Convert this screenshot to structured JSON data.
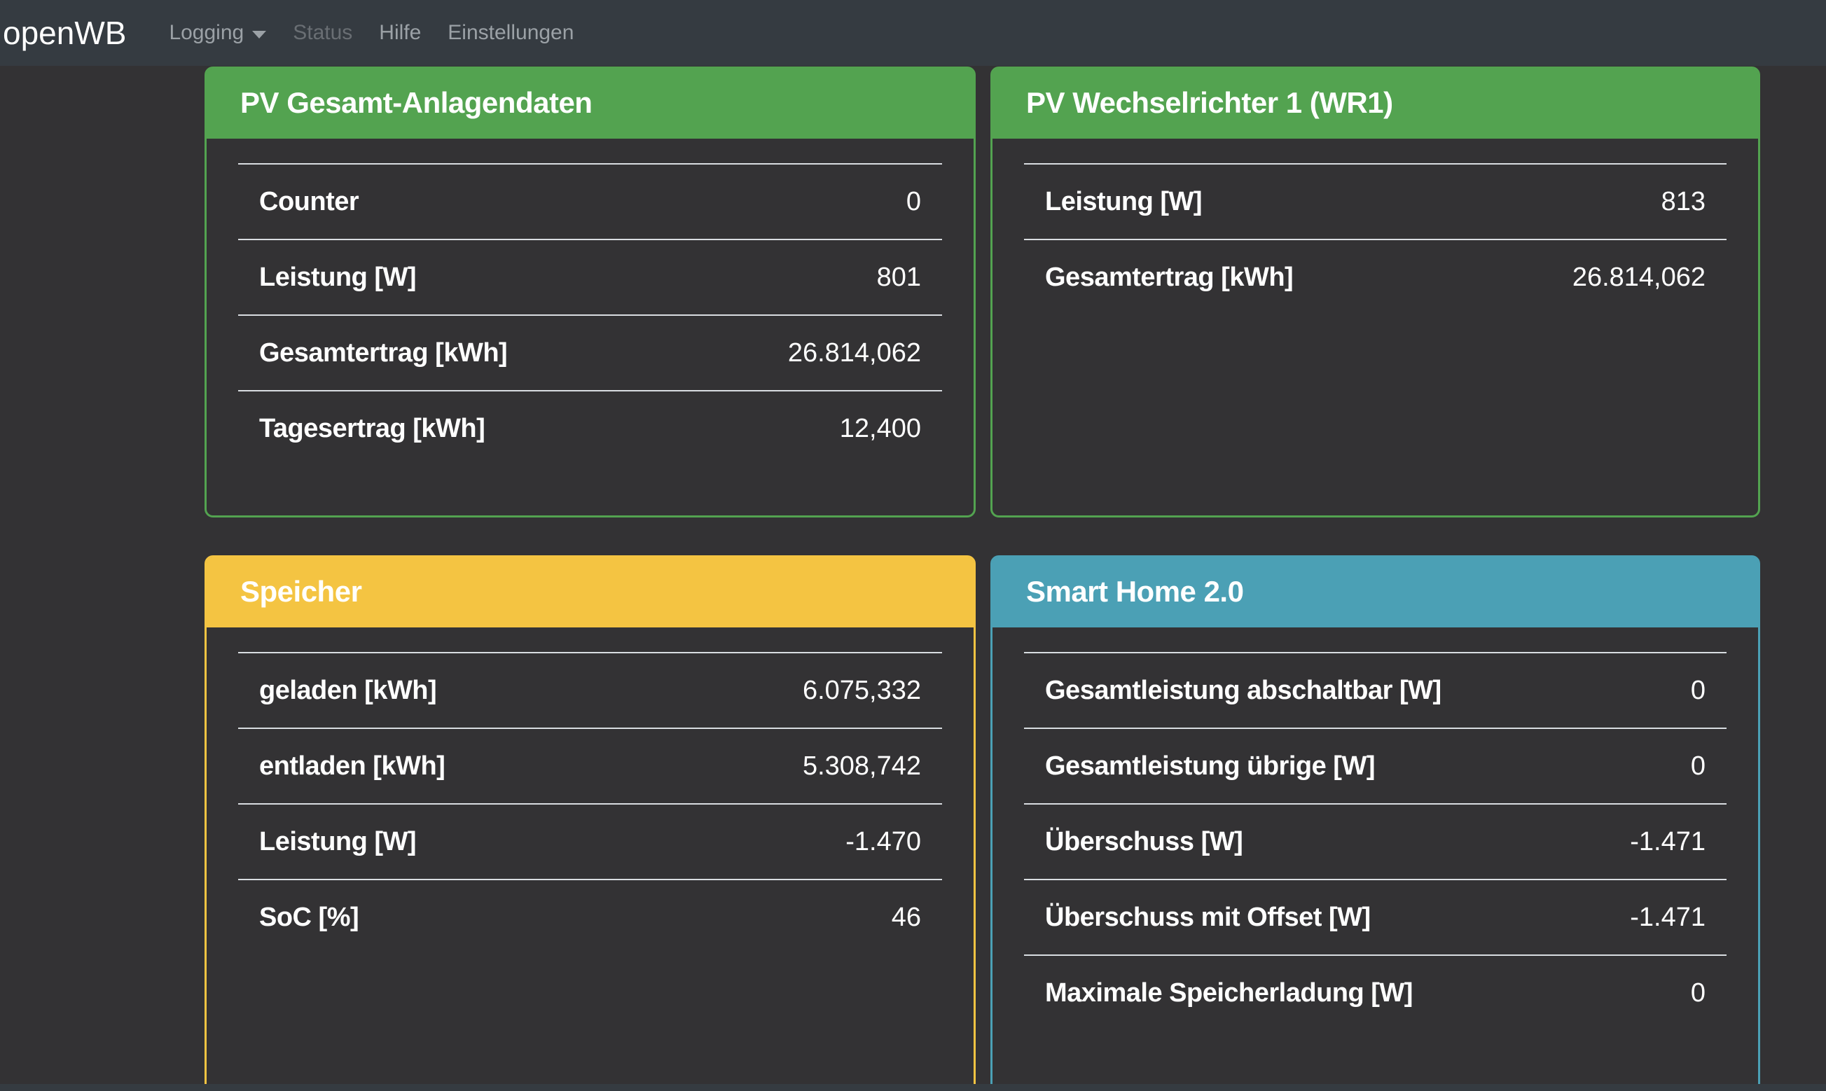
{
  "navbar": {
    "brand": "openWB",
    "items": [
      {
        "label": "Logging",
        "has_dropdown": true,
        "state": "default"
      },
      {
        "label": "Status",
        "has_dropdown": false,
        "state": "disabled"
      },
      {
        "label": "Hilfe",
        "has_dropdown": false,
        "state": "default"
      },
      {
        "label": "Einstellungen",
        "has_dropdown": false,
        "state": "default"
      }
    ]
  },
  "cards": [
    {
      "title": "PV Gesamt-Anlagendaten",
      "accent_color": "#53a350",
      "rows": [
        {
          "label": "Counter",
          "value": "0"
        },
        {
          "label": "Leistung [W]",
          "value": "801"
        },
        {
          "label": "Gesamtertrag [kWh]",
          "value": "26.814,062"
        },
        {
          "label": "Tagesertrag [kWh]",
          "value": "12,400"
        }
      ]
    },
    {
      "title": "PV Wechselrichter 1 (WR1)",
      "accent_color": "#53a350",
      "rows": [
        {
          "label": "Leistung [W]",
          "value": "813"
        },
        {
          "label": "Gesamtertrag [kWh]",
          "value": "26.814,062"
        }
      ]
    },
    {
      "title": "Speicher",
      "accent_color": "#f4c442",
      "rows": [
        {
          "label": "geladen [kWh]",
          "value": "6.075,332"
        },
        {
          "label": "entladen [kWh]",
          "value": "5.308,742"
        },
        {
          "label": "Leistung [W]",
          "value": "-1.470"
        },
        {
          "label": "SoC [%]",
          "value": "46"
        }
      ]
    },
    {
      "title": "Smart Home 2.0",
      "accent_color": "#4ba0b5",
      "rows": [
        {
          "label": "Gesamtleistung abschaltbar [W]",
          "value": "0"
        },
        {
          "label": "Gesamtleistung übrige [W]",
          "value": "0"
        },
        {
          "label": "Überschuss [W]",
          "value": "-1.471"
        },
        {
          "label": "Überschuss mit Offset [W]",
          "value": "-1.471"
        },
        {
          "label": "Maximale Speicherladung [W]",
          "value": "0"
        }
      ]
    }
  ],
  "colors": {
    "navbar_background": "#353b41",
    "page_background": "#333234",
    "card_green": "#53a350",
    "card_yellow": "#f4c442",
    "card_teal": "#4ba0b5",
    "table_line": "#d9dde1",
    "nav_link": "#9ba1a6",
    "nav_link_disabled": "#696e73",
    "text": "#ffffff"
  }
}
